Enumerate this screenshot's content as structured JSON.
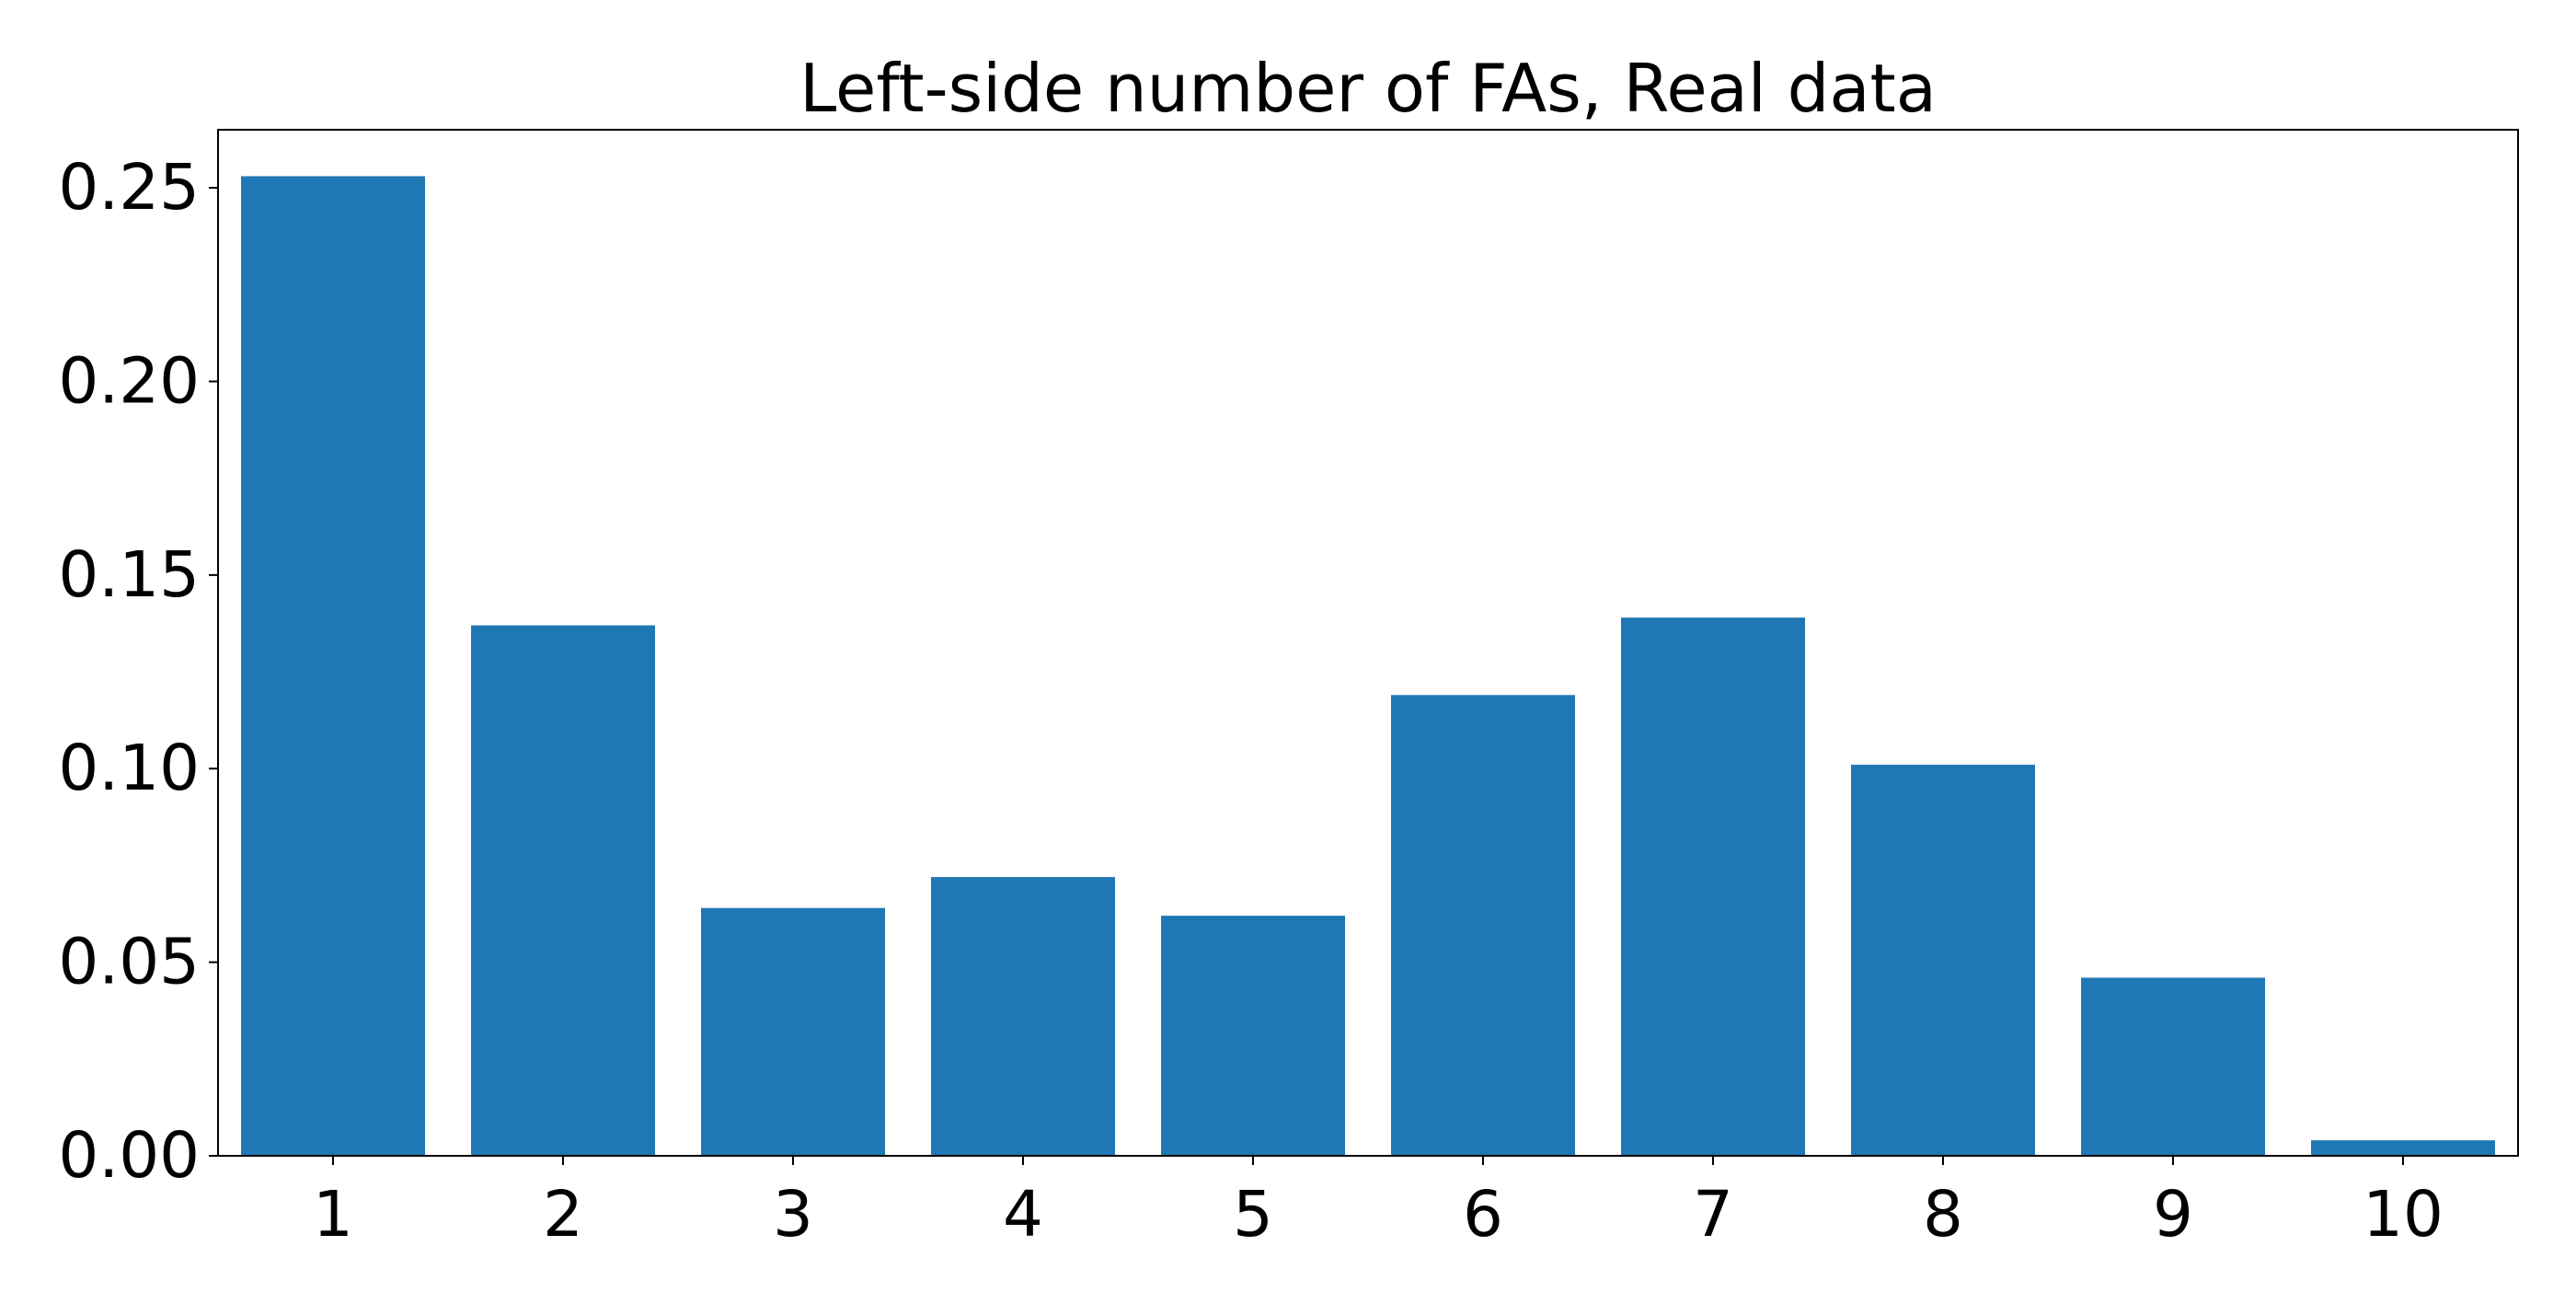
{
  "chart_data": {
    "type": "bar",
    "title": "Left-side number of FAs, Real data",
    "xlabel": "",
    "ylabel": "",
    "categories": [
      "1",
      "2",
      "3",
      "4",
      "5",
      "6",
      "7",
      "8",
      "9",
      "10"
    ],
    "values": [
      0.253,
      0.137,
      0.064,
      0.072,
      0.062,
      0.119,
      0.139,
      0.101,
      0.046,
      0.004
    ],
    "ylim": [
      0,
      0.265
    ],
    "yticks": [
      0.0,
      0.05,
      0.1,
      0.15,
      0.2,
      0.25
    ],
    "ytick_labels": [
      "0.00",
      "0.05",
      "0.10",
      "0.15",
      "0.20",
      "0.25"
    ],
    "bar_color": "#1f77b4",
    "grid": false,
    "legend": "none"
  }
}
